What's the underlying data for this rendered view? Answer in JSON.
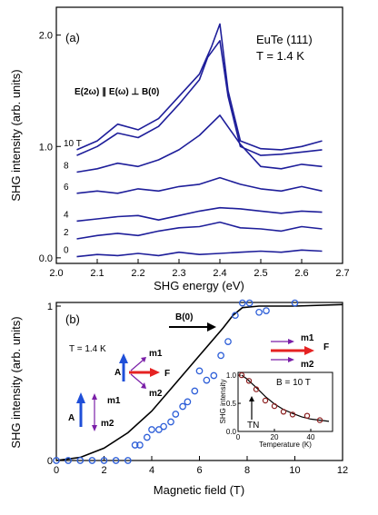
{
  "chart_data": [
    {
      "type": "line",
      "panel_label": "(a)",
      "title": "EuTe (111)",
      "subtitle": "T = 1.4 K",
      "annotation": "E(2ω) ∥ E(ω) ⊥ B(0)",
      "xlabel": "SHG energy (eV)",
      "ylabel": "SHG intensity (arb. units)",
      "xlim": [
        2.0,
        2.7
      ],
      "ylim": [
        -0.05,
        2.25
      ],
      "x_ticks": [
        "2.0",
        "2.1",
        "2.2",
        "2.3",
        "2.4",
        "2.5",
        "2.6",
        "2.7"
      ],
      "y_ticks": [
        "0.0",
        "1.0",
        "2.0"
      ],
      "series": [
        {
          "name": "0",
          "label": "0",
          "x": [
            2.05,
            2.1,
            2.15,
            2.2,
            2.25,
            2.3,
            2.35,
            2.4,
            2.45,
            2.5,
            2.55,
            2.6,
            2.65
          ],
          "y": [
            0.01,
            0.03,
            0.02,
            0.04,
            0.02,
            0.05,
            0.03,
            0.04,
            0.05,
            0.06,
            0.05,
            0.07,
            0.06
          ]
        },
        {
          "name": "2",
          "label": "2",
          "x": [
            2.05,
            2.1,
            2.15,
            2.2,
            2.25,
            2.3,
            2.35,
            2.4,
            2.45,
            2.5,
            2.55,
            2.6,
            2.65
          ],
          "y": [
            0.17,
            0.2,
            0.22,
            0.2,
            0.24,
            0.27,
            0.28,
            0.32,
            0.27,
            0.26,
            0.24,
            0.28,
            0.26
          ]
        },
        {
          "name": "4",
          "label": "4",
          "x": [
            2.05,
            2.1,
            2.15,
            2.2,
            2.25,
            2.3,
            2.35,
            2.4,
            2.45,
            2.5,
            2.55,
            2.6,
            2.65
          ],
          "y": [
            0.33,
            0.35,
            0.37,
            0.38,
            0.34,
            0.38,
            0.42,
            0.45,
            0.44,
            0.42,
            0.4,
            0.42,
            0.41
          ]
        },
        {
          "name": "6",
          "label": "6",
          "x": [
            2.05,
            2.1,
            2.15,
            2.2,
            2.25,
            2.3,
            2.35,
            2.4,
            2.45,
            2.5,
            2.55,
            2.6,
            2.65
          ],
          "y": [
            0.58,
            0.6,
            0.58,
            0.62,
            0.6,
            0.64,
            0.66,
            0.72,
            0.66,
            0.62,
            0.6,
            0.64,
            0.6
          ]
        },
        {
          "name": "8",
          "label": "8",
          "x": [
            2.05,
            2.1,
            2.15,
            2.2,
            2.25,
            2.3,
            2.35,
            2.4,
            2.45,
            2.5,
            2.55,
            2.6,
            2.65
          ],
          "y": [
            0.77,
            0.8,
            0.85,
            0.82,
            0.88,
            0.97,
            1.1,
            1.28,
            1.02,
            0.82,
            0.8,
            0.84,
            0.82
          ]
        },
        {
          "name": "10 T",
          "label": "10 T",
          "x": [
            2.05,
            2.1,
            2.15,
            2.2,
            2.25,
            2.3,
            2.35,
            2.38,
            2.4,
            2.42,
            2.45,
            2.5,
            2.55,
            2.6,
            2.65
          ],
          "y": [
            0.97,
            1.05,
            1.2,
            1.15,
            1.25,
            1.45,
            1.65,
            1.9,
            2.1,
            1.5,
            1.05,
            0.98,
            0.97,
            1.0,
            1.05
          ]
        },
        {
          "name": "",
          "label": "",
          "x": [
            2.05,
            2.1,
            2.15,
            2.2,
            2.25,
            2.3,
            2.35,
            2.37,
            2.4,
            2.42,
            2.45,
            2.5,
            2.55,
            2.6,
            2.65
          ],
          "y": [
            0.92,
            1.0,
            1.12,
            1.08,
            1.18,
            1.38,
            1.6,
            1.8,
            1.95,
            1.45,
            1.0,
            0.92,
            0.93,
            0.95,
            0.97
          ]
        }
      ]
    },
    {
      "type": "scatter",
      "panel_label": "(b)",
      "subtitle": "T = 1.4 K",
      "xlabel": "Magnetic field (T)",
      "ylabel": "SHG intensity (arb. units)",
      "xlim": [
        0,
        12
      ],
      "ylim": [
        0,
        1
      ],
      "x_ticks": [
        "0",
        "2",
        "4",
        "6",
        "8",
        "10",
        "12"
      ],
      "y_ticks": [
        "0",
        "1"
      ],
      "diagram_labels": {
        "field": "B(0)",
        "a": "A",
        "f": "F",
        "m1": "m1",
        "m2": "m2"
      },
      "points": {
        "x": [
          0,
          0.5,
          1,
          1.5,
          2,
          2.5,
          3,
          3.3,
          3.5,
          3.8,
          4,
          4.3,
          4.5,
          4.8,
          5,
          5.3,
          5.5,
          5.8,
          6,
          6.3,
          6.6,
          6.9,
          7.2,
          7.5,
          7.8,
          8.1,
          8.5,
          8.8,
          10
        ],
        "y": [
          0,
          0,
          0,
          0,
          0,
          0,
          0,
          0.1,
          0.1,
          0.15,
          0.2,
          0.2,
          0.22,
          0.25,
          0.3,
          0.35,
          0.38,
          0.45,
          0.58,
          0.52,
          0.55,
          0.68,
          0.77,
          0.94,
          1.02,
          1.02,
          0.96,
          0.97,
          1.02
        ]
      },
      "fit": {
        "x": [
          0,
          1,
          2,
          3,
          4,
          5,
          6,
          7,
          7.4,
          7.8,
          8.5,
          10,
          12
        ],
        "y": [
          0,
          0.02,
          0.08,
          0.18,
          0.32,
          0.5,
          0.68,
          0.86,
          0.94,
          0.99,
          1.0,
          1.0,
          1.01
        ]
      },
      "inset": {
        "type": "scatter",
        "title": "B = 10 T",
        "xlabel": "Temperature (K)",
        "ylabel": "SHG intensity",
        "annotation": "TN",
        "x_ticks": [
          "0",
          "20",
          "40"
        ],
        "y_ticks": [
          "0.0",
          "0.5",
          "1.0"
        ],
        "xlim": [
          0,
          52
        ],
        "ylim": [
          0,
          1.05
        ],
        "points": {
          "x": [
            2,
            6,
            10,
            15,
            20,
            25,
            30,
            38,
            45
          ],
          "y": [
            1.0,
            0.9,
            0.75,
            0.55,
            0.45,
            0.35,
            0.3,
            0.28,
            0.2
          ]
        },
        "fit": {
          "x": [
            2,
            5,
            10,
            15,
            20,
            25,
            30,
            35,
            40,
            45,
            50
          ],
          "y": [
            1.0,
            0.93,
            0.78,
            0.62,
            0.49,
            0.39,
            0.32,
            0.26,
            0.22,
            0.2,
            0.18
          ]
        }
      }
    }
  ],
  "colors": {
    "curve": "#1e1e9a",
    "fit": "#000000",
    "points": "#2e5fd8",
    "inset_points": "#8b1e1e",
    "arrow_red": "#e52222",
    "arrow_purple": "#7a1fa8",
    "arrow_blue": "#1f4fd8"
  }
}
